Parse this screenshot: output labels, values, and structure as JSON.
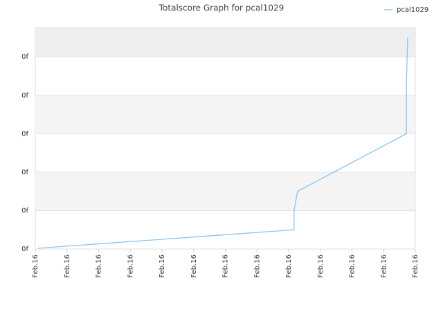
{
  "chart_data": {
    "type": "line",
    "title": "Totalscore Graph for pcal1029",
    "x": [
      0.09,
      8.17,
      8.17,
      8.28,
      11.72,
      11.72,
      11.76
    ],
    "series": [
      {
        "name": "pcal1029",
        "color": "#8cc4f0",
        "values": [
          0.02,
          0.5,
          0.99,
          1.5,
          3.0,
          4.36,
          5.5
        ]
      }
    ],
    "xlim": [
      0,
      12
    ],
    "xticks": [
      {
        "value": 0,
        "label": "Feb.16"
      },
      {
        "value": 1,
        "label": "Feb.16"
      },
      {
        "value": 2,
        "label": "Feb.16"
      },
      {
        "value": 3,
        "label": "Feb.16"
      },
      {
        "value": 4,
        "label": "Feb.16"
      },
      {
        "value": 5,
        "label": "Feb.16"
      },
      {
        "value": 6,
        "label": "Feb.16"
      },
      {
        "value": 7,
        "label": "Feb.16"
      },
      {
        "value": 8,
        "label": "Feb.16"
      },
      {
        "value": 9,
        "label": "Feb.16"
      },
      {
        "value": 10,
        "label": "Feb.16"
      },
      {
        "value": 11,
        "label": "Feb.16"
      },
      {
        "value": 12,
        "label": "Feb.16"
      }
    ],
    "ylim": [
      0,
      5.76
    ],
    "yticks": [
      {
        "value": 0,
        "label": "0f"
      },
      {
        "value": 1,
        "label": "0f"
      },
      {
        "value": 2,
        "label": "0f"
      },
      {
        "value": 3,
        "label": "0f"
      },
      {
        "value": 4,
        "label": "0f"
      },
      {
        "value": 5,
        "label": "0f"
      }
    ],
    "grid": true,
    "legend": "top-right"
  }
}
